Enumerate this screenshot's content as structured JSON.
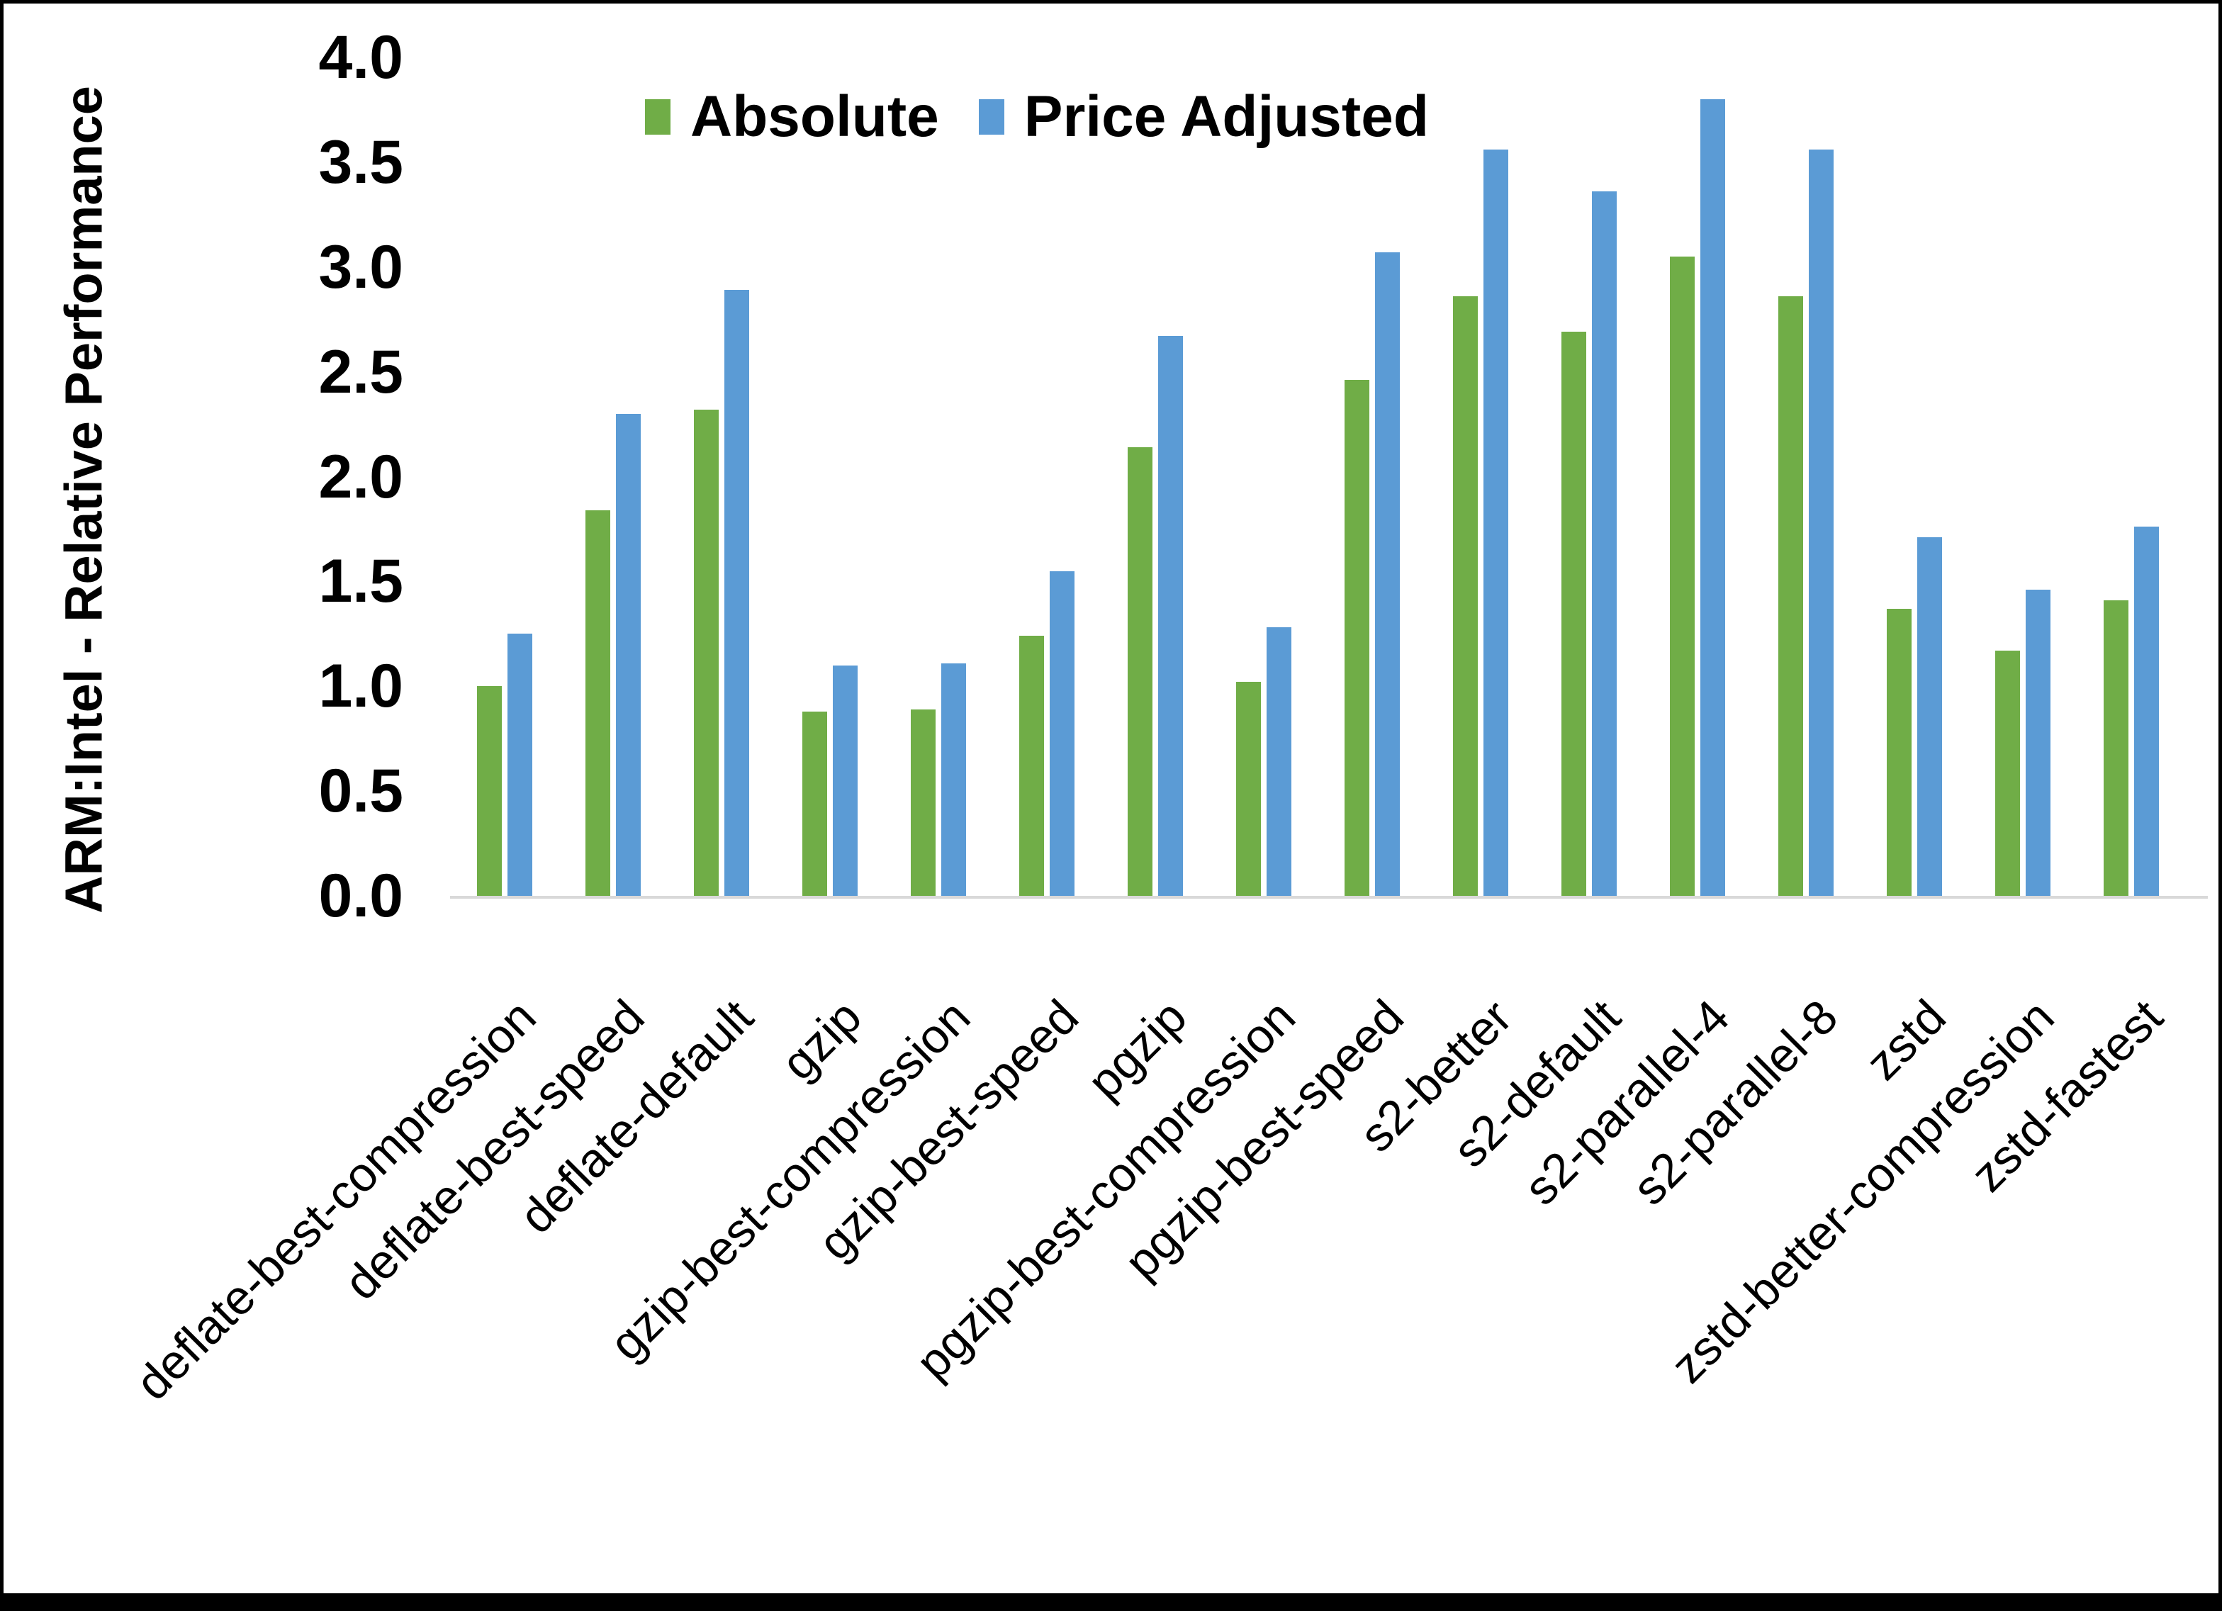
{
  "window": {
    "background": "#ffffff",
    "border_color": "#000000",
    "bottom_bar_color": "#000000"
  },
  "chart_data": {
    "type": "bar",
    "title": "",
    "xlabel": "",
    "ylabel": "ARM:Intel - Relative Performance",
    "ylim": [
      0.0,
      4.0
    ],
    "ytick_step": 0.5,
    "yticks": [
      "0.0",
      "0.5",
      "1.0",
      "1.5",
      "2.0",
      "2.5",
      "3.0",
      "3.5",
      "4.0"
    ],
    "grid": false,
    "legend_position": "top-center",
    "axis_line_color": "#d9d9d9",
    "categories": [
      "deflate-best-compression",
      "deflate-best-speed",
      "deflate-default",
      "gzip",
      "gzip-best-compression",
      "gzip-best-speed",
      "pgzip",
      "pgzip-best-compression",
      "pgzip-best-speed",
      "s2-better",
      "s2-default",
      "s2-parallel-4",
      "s2-parallel-8",
      "zstd",
      "zstd-better-compression",
      "zstd-fastest"
    ],
    "series": [
      {
        "name": "Absolute",
        "color": "#70AD47",
        "values": [
          1.0,
          1.84,
          2.32,
          0.88,
          0.89,
          1.24,
          2.14,
          1.02,
          2.46,
          2.86,
          2.69,
          3.05,
          2.86,
          1.37,
          1.17,
          1.41
        ]
      },
      {
        "name": "Price Adjusted",
        "color": "#5B9BD5",
        "values": [
          1.25,
          2.3,
          2.89,
          1.1,
          1.11,
          1.55,
          2.67,
          1.28,
          3.07,
          3.56,
          3.36,
          3.8,
          3.56,
          1.71,
          1.46,
          1.76
        ]
      }
    ]
  }
}
